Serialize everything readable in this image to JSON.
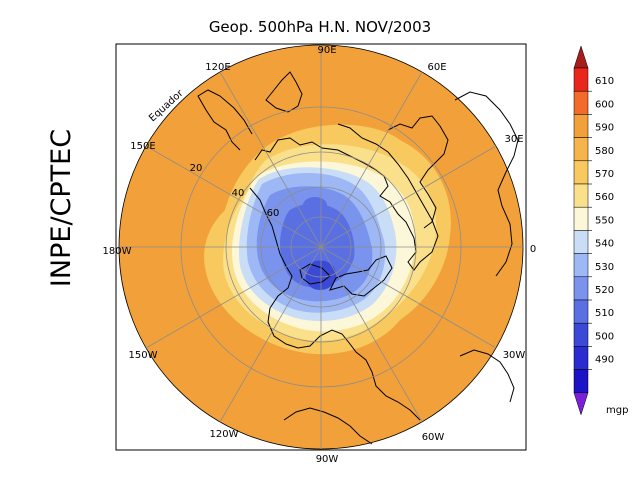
{
  "title": "Geop. 500hPa H.N. NOV/2003",
  "side_label": "INPE/CPTEC",
  "map": {
    "longitude_labels": [
      "90E",
      "60E",
      "30E",
      "0",
      "30W",
      "60W",
      "90W",
      "120W",
      "150W",
      "180W",
      "150E",
      "120E"
    ],
    "latitude_labels": [
      "Equador",
      "20",
      "40",
      "60"
    ]
  },
  "colorbar": {
    "levels": [
      "610",
      "600",
      "590",
      "580",
      "570",
      "560",
      "550",
      "540",
      "530",
      "520",
      "510",
      "500",
      "490"
    ],
    "unit": "mgp",
    "colors": [
      "#e8261c",
      "#f26b2b",
      "#f2a13a",
      "#f5b54c",
      "#f7c95e",
      "#fae08a",
      "#fdf7d9",
      "#c9ddf7",
      "#9eb8f5",
      "#7a94ee",
      "#5a70e2",
      "#3b4ad6",
      "#2a2bd0",
      "#1c12c6"
    ],
    "end_colors": {
      "top": "#a81c1c",
      "bottom": "#7d1fd6"
    }
  }
}
